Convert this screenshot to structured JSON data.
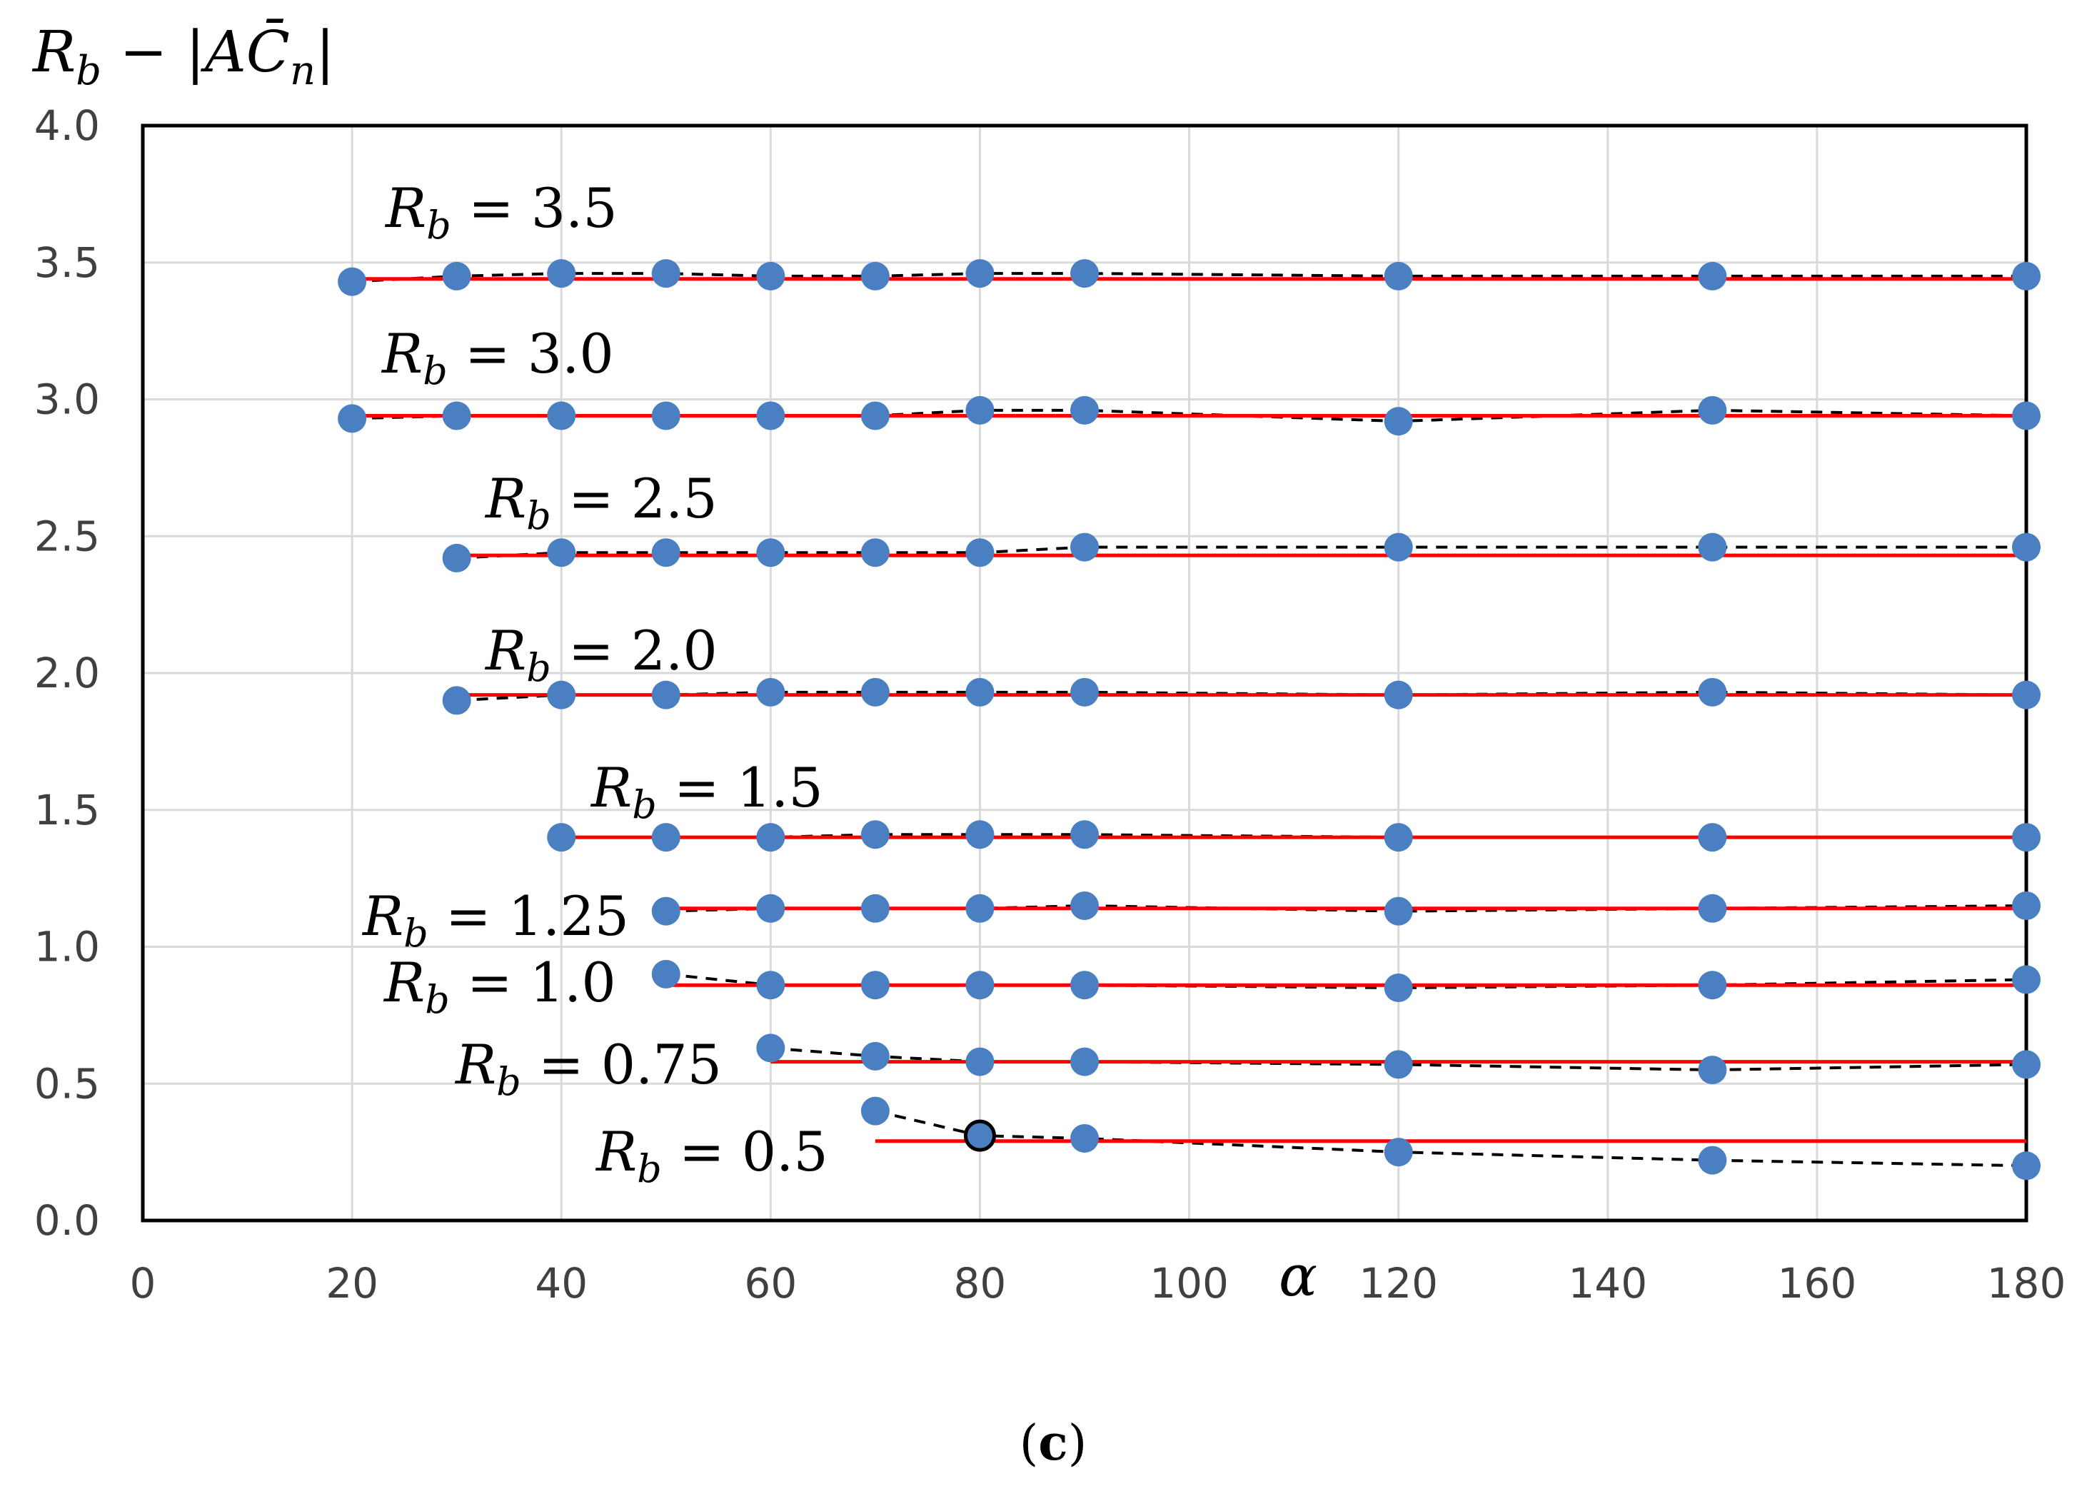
{
  "chart_data": {
    "type": "scatter",
    "title": "",
    "xlabel": "α",
    "ylabel": "R_b − |AC̄_n|",
    "xlim": [
      0,
      180
    ],
    "ylim": [
      0,
      4
    ],
    "x_ticks": [
      0,
      20,
      40,
      60,
      80,
      100,
      120,
      140,
      160,
      180
    ],
    "y_ticks": [
      "0.0",
      "0.5",
      "1.0",
      "1.5",
      "2.0",
      "2.5",
      "3.0",
      "3.5",
      "4.0"
    ],
    "grid": true,
    "caption": "(c)",
    "colors": {
      "points": "#4a7fc1",
      "fit_line": "#ff0000",
      "dashed_line": "#000000"
    },
    "series": [
      {
        "name": "R_b = 3.5",
        "label_text": "3.5",
        "x": [
          20,
          30,
          40,
          50,
          60,
          70,
          80,
          90,
          120,
          150,
          180
        ],
        "y": [
          3.43,
          3.45,
          3.46,
          3.46,
          3.45,
          3.45,
          3.46,
          3.46,
          3.45,
          3.45,
          3.45
        ],
        "fit": 3.44
      },
      {
        "name": "R_b = 3.0",
        "label_text": "3.0",
        "x": [
          20,
          30,
          40,
          50,
          60,
          70,
          80,
          90,
          120,
          150,
          180
        ],
        "y": [
          2.93,
          2.94,
          2.94,
          2.94,
          2.94,
          2.94,
          2.96,
          2.96,
          2.92,
          2.96,
          2.94
        ],
        "fit": 2.94
      },
      {
        "name": "R_b = 2.5",
        "label_text": "2.5",
        "x": [
          30,
          40,
          50,
          60,
          70,
          80,
          90,
          120,
          150,
          180
        ],
        "y": [
          2.42,
          2.44,
          2.44,
          2.44,
          2.44,
          2.44,
          2.46,
          2.46,
          2.46,
          2.46
        ],
        "fit": 2.43
      },
      {
        "name": "R_b = 2.0",
        "label_text": "2.0",
        "x": [
          30,
          40,
          50,
          60,
          70,
          80,
          90,
          120,
          150,
          180
        ],
        "y": [
          1.9,
          1.92,
          1.92,
          1.93,
          1.93,
          1.93,
          1.93,
          1.92,
          1.93,
          1.92
        ],
        "fit": 1.92
      },
      {
        "name": "R_b = 1.5",
        "label_text": "1.5",
        "x": [
          40,
          50,
          60,
          70,
          80,
          90,
          120,
          150,
          180
        ],
        "y": [
          1.4,
          1.4,
          1.4,
          1.41,
          1.41,
          1.41,
          1.4,
          1.4,
          1.4
        ],
        "fit": 1.4
      },
      {
        "name": "R_b = 1.25",
        "label_text": "1.25",
        "x": [
          50,
          60,
          70,
          80,
          90,
          120,
          150,
          180
        ],
        "y": [
          1.13,
          1.14,
          1.14,
          1.14,
          1.15,
          1.13,
          1.14,
          1.15
        ],
        "fit": 1.14
      },
      {
        "name": "R_b = 1.0",
        "label_text": "1.0",
        "x": [
          50,
          60,
          70,
          80,
          90,
          120,
          150,
          180
        ],
        "y": [
          0.9,
          0.86,
          0.86,
          0.86,
          0.86,
          0.85,
          0.86,
          0.88
        ],
        "fit": 0.86
      },
      {
        "name": "R_b = 0.75",
        "label_text": "0.75",
        "x": [
          60,
          70,
          80,
          90,
          120,
          150,
          180
        ],
        "y": [
          0.63,
          0.6,
          0.58,
          0.58,
          0.57,
          0.55,
          0.57
        ],
        "fit": 0.58
      },
      {
        "name": "R_b = 0.5",
        "label_text": "0.5",
        "x": [
          70,
          80,
          90,
          120,
          150,
          180
        ],
        "y": [
          0.4,
          0.31,
          0.3,
          0.25,
          0.22,
          0.2
        ],
        "fit": 0.29,
        "highlight_x": 80
      }
    ]
  }
}
